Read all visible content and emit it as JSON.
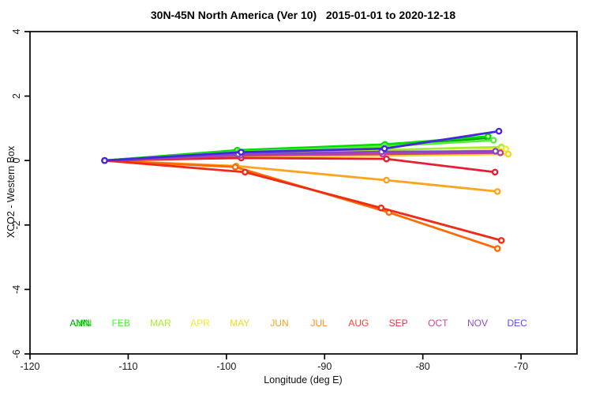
{
  "chart_data": {
    "type": "line",
    "title": "30N-45N North America (Ver 10)   2015-01-01 to 2020-12-18",
    "xlabel": "Longitude (deg E)",
    "ylabel": "XCO2 - Western Box",
    "xlim": [
      -120,
      -64.3
    ],
    "ylim": [
      -6,
      4
    ],
    "xticks": [
      -120,
      -110,
      -100,
      -90,
      -80,
      -70
    ],
    "yticks": [
      4,
      2,
      0,
      -2,
      -4,
      -6
    ],
    "grid": false,
    "legend_position": "bottom-inside",
    "marker": "open-circle",
    "axis_color": "#000000",
    "series": [
      {
        "name": "ANN",
        "color": "#00A000",
        "x": [
          -112.4,
          -98.9,
          -84.0,
          -73.4
        ],
        "y": [
          0,
          0.29,
          0.46,
          0.7
        ]
      },
      {
        "name": "JAN",
        "color": "#00DC00",
        "x": [
          -112.4,
          -98.9,
          -83.85,
          -73.35
        ],
        "y": [
          0,
          0.32,
          0.5,
          0.75
        ]
      },
      {
        "name": "FEB",
        "color": "#55EE3C",
        "x": [
          -112.4,
          -98.7,
          -83.9,
          -72.8
        ],
        "y": [
          0,
          0.27,
          0.44,
          0.63
        ]
      },
      {
        "name": "MAR",
        "color": "#A8EE28",
        "x": [
          -112.4,
          -98.6,
          -83.9,
          -72.0
        ],
        "y": [
          0,
          0.22,
          0.33,
          0.42
        ]
      },
      {
        "name": "APR",
        "color": "#EDED2A",
        "x": [
          -112.4,
          -98.5,
          -83.8,
          -71.55
        ],
        "y": [
          0,
          0.15,
          0.2,
          0.36
        ]
      },
      {
        "name": "MAY",
        "color": "#F2D722",
        "x": [
          -112.4,
          -98.4,
          -83.75,
          -71.3
        ],
        "y": [
          0,
          0.12,
          0.15,
          0.2
        ]
      },
      {
        "name": "JUN",
        "color": "#FCA41E",
        "x": [
          -112.4,
          -99.0,
          -83.7,
          -72.4
        ],
        "y": [
          0,
          -0.17,
          -0.61,
          -0.96
        ]
      },
      {
        "name": "JUL",
        "color": "#FF6A00",
        "x": [
          -112.4,
          -99.1,
          -83.45,
          -72.4
        ],
        "y": [
          0,
          -0.2,
          -1.61,
          -2.73
        ]
      },
      {
        "name": "AUG",
        "color": "#EE2B14",
        "x": [
          -112.4,
          -98.1,
          -84.25,
          -72.0
        ],
        "y": [
          0,
          -0.36,
          -1.47,
          -2.48
        ]
      },
      {
        "name": "SEP",
        "color": "#E51E32",
        "x": [
          -112.4,
          -98.5,
          -83.7,
          -72.65
        ],
        "y": [
          0,
          0.08,
          0.05,
          -0.36
        ]
      },
      {
        "name": "OCT",
        "color": "#C83C96",
        "x": [
          -112.4,
          -98.6,
          -84.1,
          -72.1
        ],
        "y": [
          0,
          0.16,
          0.2,
          0.24
        ]
      },
      {
        "name": "NOV",
        "color": "#8846C8",
        "x": [
          -112.4,
          -98.8,
          -84.2,
          -72.6
        ],
        "y": [
          0,
          0.2,
          0.27,
          0.29
        ]
      },
      {
        "name": "DEC",
        "color": "#4628DC",
        "x": [
          -112.4,
          -98.5,
          -83.9,
          -72.25
        ],
        "y": [
          0,
          0.26,
          0.37,
          0.91
        ]
      }
    ],
    "annual_label": {
      "label": "ANN",
      "color": "#00A000"
    },
    "month_labels": [
      {
        "label": "JAN",
        "color": "#00DC00"
      },
      {
        "label": "FEB",
        "color": "#55EE3C"
      },
      {
        "label": "MAR",
        "color": "#A8EE28"
      },
      {
        "label": "APR",
        "color": "#EDED2A"
      },
      {
        "label": "MAY",
        "color": "#F2D722"
      },
      {
        "label": "JUN",
        "color": "#FCA41E"
      },
      {
        "label": "JUL",
        "color": "#FF8C28"
      },
      {
        "label": "AUG",
        "color": "#F04638"
      },
      {
        "label": "SEP",
        "color": "#E53246"
      },
      {
        "label": "OCT",
        "color": "#C84696"
      },
      {
        "label": "NOV",
        "color": "#9150C8"
      },
      {
        "label": "DEC",
        "color": "#5A46E6"
      }
    ]
  }
}
